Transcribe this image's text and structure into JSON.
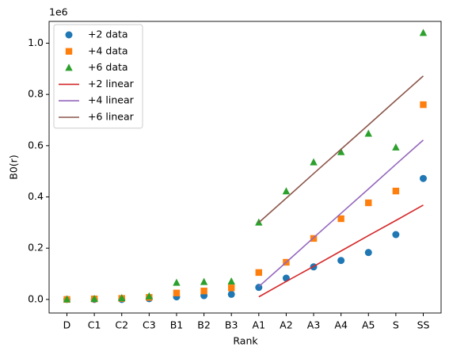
{
  "chart_data": {
    "type": "scatter",
    "xlabel": "Rank",
    "ylabel": "B0(r)",
    "offset_text": "1e6",
    "categories": [
      "D",
      "C1",
      "C2",
      "C3",
      "B1",
      "B2",
      "B3",
      "A1",
      "A2",
      "A3",
      "A4",
      "A5",
      "S",
      "SS"
    ],
    "ylim": [
      -0.053,
      1.085
    ],
    "yticks": [
      {
        "value": 0,
        "label": "0.0"
      },
      0.2,
      0.4,
      0.6,
      0.8,
      {
        "value": 1,
        "label": "1.0"
      }
    ],
    "legend": "upper left",
    "series": [
      {
        "name": "+2 data",
        "color": "#1f77b4",
        "marker": "circle",
        "values": [
          0,
          0,
          0,
          0.003,
          0.01,
          0.015,
          0.02,
          0.047,
          0.083,
          0.127,
          0.152,
          0.183,
          0.253,
          0.472
        ]
      },
      {
        "name": "+4 data",
        "color": "#ff7f0e",
        "marker": "square",
        "values": [
          0,
          0.002,
          0.004,
          0.008,
          0.025,
          0.033,
          0.045,
          0.105,
          0.145,
          0.238,
          0.315,
          0.377,
          0.423,
          0.76
        ]
      },
      {
        "name": "+6 data",
        "color": "#2ca02c",
        "marker": "triangle",
        "values": [
          0,
          0.002,
          0.005,
          0.012,
          0.065,
          0.068,
          0.07,
          0.3,
          0.422,
          0.535,
          0.575,
          0.647,
          0.593,
          1.04
        ]
      },
      {
        "name": "+2 linear",
        "color": "#d62728",
        "marker": "line",
        "values": [
          null,
          null,
          null,
          null,
          null,
          null,
          null,
          0.01,
          0.07,
          0.129,
          0.189,
          0.249,
          0.308,
          0.368
        ]
      },
      {
        "name": "+4 linear",
        "color": "#9467bd",
        "marker": "line",
        "values": [
          null,
          null,
          null,
          null,
          null,
          null,
          null,
          0.05,
          0.145,
          0.241,
          0.336,
          0.431,
          0.527,
          0.622
        ]
      },
      {
        "name": "+6 linear",
        "color": "#8c564b",
        "marker": "line",
        "values": [
          null,
          null,
          null,
          null,
          null,
          null,
          null,
          0.3,
          0.395,
          0.491,
          0.586,
          0.681,
          0.777,
          0.872
        ]
      }
    ]
  }
}
